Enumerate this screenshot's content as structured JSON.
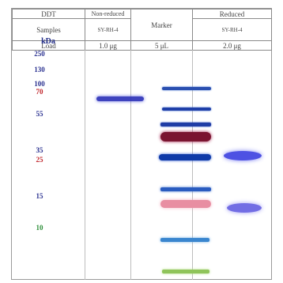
{
  "table": {
    "row1": {
      "c1": "DDT",
      "c2": "Non-reduced",
      "c3": "",
      "c4": "Reduced"
    },
    "row2": {
      "c1": "Samples",
      "c2": "SY-RH-4",
      "c3": "Marker",
      "c4": "SY-RH-4"
    },
    "row3": {
      "c1": "Load",
      "c2": "1.0 μg",
      "c3": "5 μL",
      "c4": "2.0 μg"
    }
  },
  "kda_label": "kDa",
  "markers": [
    {
      "label": "250",
      "color": "#2a3190"
    },
    {
      "label": "130",
      "color": "#2a3190"
    },
    {
      "label": "100",
      "color": "#2a3190"
    },
    {
      "label": "70",
      "color": "#c1272d"
    },
    {
      "label": "55",
      "color": "#2a3190"
    },
    {
      "label": "35",
      "color": "#2a3190"
    },
    {
      "label": "25",
      "color": "#c1272d"
    },
    {
      "label": "15",
      "color": "#2a3190"
    },
    {
      "label": "10",
      "color": "#2f8f3a"
    }
  ]
}
